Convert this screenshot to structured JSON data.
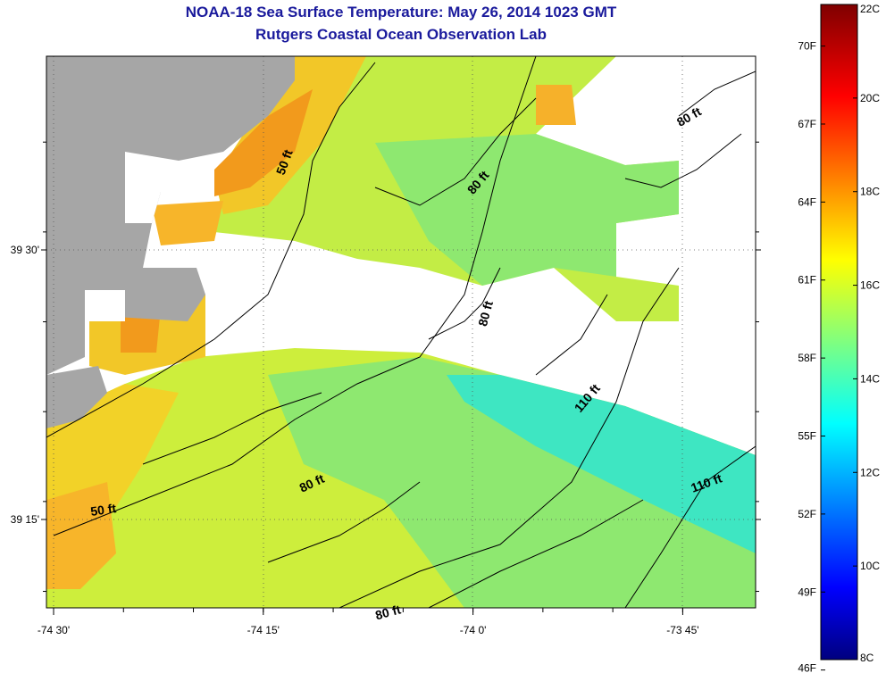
{
  "title": "NOAA-18 Sea Surface Temperature:  May 26, 2014 1023 GMT",
  "subtitle": "Rutgers Coastal Ocean Observation Lab",
  "x_ticks": [
    {
      "value": -74.5,
      "label": "-74 30'"
    },
    {
      "value": -74.25,
      "label": "-74 15'"
    },
    {
      "value": -74.0,
      "label": "-74 0'"
    },
    {
      "value": -73.75,
      "label": "-73 45'"
    }
  ],
  "y_ticks": [
    {
      "value": 39.5,
      "label": "39 30'"
    },
    {
      "value": 39.25,
      "label": "39 15'"
    }
  ],
  "contour_labels": [
    {
      "text": "50 ft",
      "lon": -74.22,
      "lat": 39.58,
      "rotate": -70
    },
    {
      "text": "80 ft",
      "lon": -73.99,
      "lat": 39.56,
      "rotate": -50
    },
    {
      "text": "80 ft",
      "lon": -73.74,
      "lat": 39.62,
      "rotate": -30
    },
    {
      "text": "80 ft",
      "lon": -73.98,
      "lat": 39.44,
      "rotate": -75
    },
    {
      "text": "110 ft",
      "lon": -73.86,
      "lat": 39.36,
      "rotate": -50
    },
    {
      "text": "110 ft",
      "lon": -73.72,
      "lat": 39.28,
      "rotate": -20
    },
    {
      "text": "80 ft",
      "lon": -74.19,
      "lat": 39.28,
      "rotate": -25
    },
    {
      "text": "50 ft",
      "lon": -74.44,
      "lat": 39.255,
      "rotate": -8
    },
    {
      "text": "80 ft",
      "lon": -74.1,
      "lat": 39.16,
      "rotate": -15
    }
  ],
  "colorbar": {
    "min_c": 8,
    "max_c": 22,
    "celsius_labels": [
      "22C",
      "20C",
      "18C",
      "16C",
      "14C",
      "12C",
      "10C",
      "8C"
    ],
    "fahrenheit_labels": [
      "70F",
      "67F",
      "64F",
      "61F",
      "58F",
      "55F",
      "52F",
      "49F",
      "46F"
    ]
  },
  "colors": {
    "title": "#1a1a9c",
    "land": "#a6a6a6",
    "no_data": "#ffffff"
  }
}
